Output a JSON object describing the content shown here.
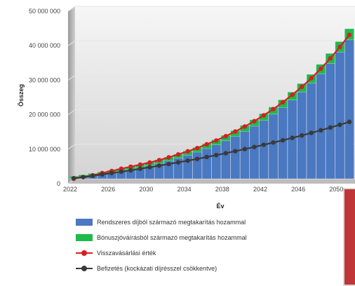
{
  "chart_data": {
    "type": "bar",
    "xlabel": "Év",
    "ylabel": "Összeg",
    "ylim": [
      0,
      50000000
    ],
    "y_ticks": [
      "0",
      "10 000 000",
      "20 000 000",
      "30 000 000",
      "40 000 000",
      "50 000 000"
    ],
    "x_ticks": [
      "2022",
      "2026",
      "2030",
      "2034",
      "2038",
      "2042",
      "2046",
      "2050"
    ],
    "x": [
      2022,
      2023,
      2024,
      2025,
      2026,
      2027,
      2028,
      2029,
      2030,
      2031,
      2032,
      2033,
      2034,
      2035,
      2036,
      2037,
      2038,
      2039,
      2040,
      2041,
      2042,
      2043,
      2044,
      2045,
      2046,
      2047,
      2048,
      2049,
      2050,
      2051
    ],
    "stacked": true,
    "series": [
      {
        "name": "Rendszeres díjból származó megtakarítás hozammal",
        "type": "bar",
        "color": "#4a78c1",
        "values": [
          200000,
          520000,
          880000,
          1270000,
          1700000,
          2160000,
          2670000,
          3220000,
          3820000,
          4480000,
          5190000,
          5970000,
          6820000,
          7740000,
          8740000,
          9830000,
          11020000,
          12310000,
          13720000,
          15250000,
          16910000,
          18720000,
          20690000,
          22830000,
          25160000,
          27690000,
          30450000,
          33450000,
          36720000,
          40280000
        ]
      },
      {
        "name": "Bónuszjóváírásból származó megtakarítás hozammal",
        "type": "bar",
        "color": "#1dba4c",
        "values": [
          550000,
          600000,
          650000,
          700000,
          750000,
          800000,
          860000,
          920000,
          980000,
          1040000,
          1100000,
          1170000,
          1240000,
          1310000,
          1390000,
          1470000,
          1560000,
          1650000,
          1750000,
          1850000,
          1960000,
          2070000,
          2190000,
          2310000,
          2440000,
          2580000,
          2720000,
          2880000,
          3040000,
          3210000
        ]
      },
      {
        "name": "Visszavásárlási érték",
        "type": "line",
        "color": "#d42020",
        "values": [
          0,
          500000,
          1000000,
          1650000,
          2250000,
          2900000,
          3500000,
          4100000,
          4700000,
          5400000,
          6200000,
          7050000,
          7950000,
          8900000,
          10000000,
          11100000,
          12350000,
          13700000,
          15150000,
          16700000,
          18400000,
          20200000,
          22200000,
          24350000,
          26650000,
          29150000,
          31900000,
          34900000,
          38200000,
          41700000
        ]
      },
      {
        "name": "Befizetés (kockázati díjrésszel csökkentve)",
        "type": "line",
        "color": "#3a3a3a",
        "values": [
          150000,
          500000,
          850000,
          1250000,
          1650000,
          2050000,
          2450000,
          2900000,
          3350000,
          3800000,
          4250000,
          4750000,
          5250000,
          5750000,
          6300000,
          6850000,
          7400000,
          8000000,
          8600000,
          9200000,
          9850000,
          10500000,
          11150000,
          11850000,
          12550000,
          13300000,
          14050000,
          14850000,
          15650000,
          16500000
        ]
      }
    ],
    "grid": true,
    "legend": "bottom"
  }
}
